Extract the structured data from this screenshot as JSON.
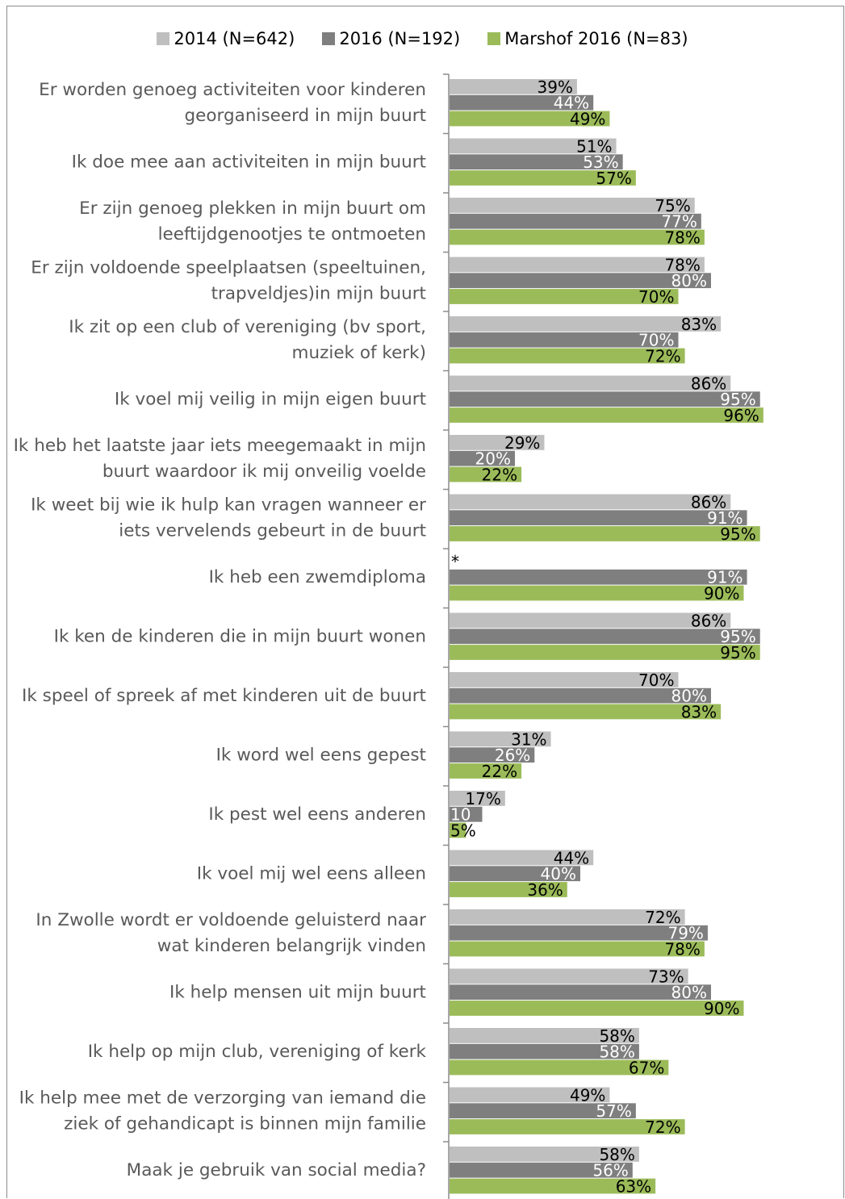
{
  "chart_data": {
    "type": "bar",
    "orientation": "horizontal",
    "xlim": [
      0,
      100
    ],
    "series": [
      {
        "name": "2014 (N=642)",
        "color": "#bfbfbf"
      },
      {
        "name": "2016 (N=192)",
        "color": "#7f7f7f"
      },
      {
        "name": "Marshof 2016 (N=83)",
        "color": "#9bbb59"
      }
    ],
    "rows": [
      {
        "label_lines": [
          "Er worden genoeg activiteiten voor kinderen",
          "georganiseerd in mijn buurt"
        ],
        "values": [
          39,
          44,
          49
        ],
        "labels": [
          "39%",
          "44%",
          "49%"
        ]
      },
      {
        "label_lines": [
          "Ik doe mee aan activiteiten in mijn buurt"
        ],
        "values": [
          51,
          53,
          57
        ],
        "labels": [
          "51%",
          "53%",
          "57%"
        ]
      },
      {
        "label_lines": [
          "Er zijn genoeg plekken in mijn buurt om",
          "leeftijdgenootjes te ontmoeten"
        ],
        "values": [
          75,
          77,
          78
        ],
        "labels": [
          "75%",
          "77%",
          "78%"
        ]
      },
      {
        "label_lines": [
          "Er zijn voldoende speelplaatsen (speeltuinen,",
          "trapveldjes)in mijn buurt"
        ],
        "values": [
          78,
          80,
          70
        ],
        "labels": [
          "78%",
          "80%",
          "70%"
        ]
      },
      {
        "label_lines": [
          "Ik zit op een club of vereniging (bv sport,",
          "muziek of kerk)"
        ],
        "values": [
          83,
          70,
          72
        ],
        "labels": [
          "83%",
          "70%",
          "72%"
        ]
      },
      {
        "label_lines": [
          "Ik voel mij veilig in mijn eigen buurt"
        ],
        "values": [
          86,
          95,
          96
        ],
        "labels": [
          "86%",
          "95%",
          "96%"
        ]
      },
      {
        "label_lines": [
          "Ik heb het laatste jaar iets meegemaakt in mijn",
          "buurt waardoor ik mij onveilig voelde"
        ],
        "values": [
          29,
          20,
          22
        ],
        "labels": [
          "29%",
          "20%",
          "22%"
        ]
      },
      {
        "label_lines": [
          "Ik weet bij wie ik hulp kan vragen wanneer er",
          "iets vervelends gebeurt in de buurt"
        ],
        "values": [
          86,
          91,
          95
        ],
        "labels": [
          "86%",
          "91%",
          "95%"
        ]
      },
      {
        "label_lines": [
          "Ik heb een zwemdiploma"
        ],
        "values": [
          null,
          91,
          90
        ],
        "labels": [
          "*",
          "91%",
          "90%"
        ]
      },
      {
        "label_lines": [
          "Ik ken de kinderen die in mijn buurt wonen"
        ],
        "values": [
          86,
          95,
          95
        ],
        "labels": [
          "86%",
          "95%",
          "95%"
        ]
      },
      {
        "label_lines": [
          "Ik speel of spreek af met kinderen uit de buurt"
        ],
        "values": [
          70,
          80,
          83
        ],
        "labels": [
          "70%",
          "80%",
          "83%"
        ]
      },
      {
        "label_lines": [
          "Ik word wel eens gepest"
        ],
        "values": [
          31,
          26,
          22
        ],
        "labels": [
          "31%",
          "26%",
          "22%"
        ]
      },
      {
        "label_lines": [
          "Ik pest wel eens anderen"
        ],
        "values": [
          17,
          10,
          5
        ],
        "labels": [
          "17%",
          "10",
          "5%"
        ]
      },
      {
        "label_lines": [
          "Ik voel mij wel eens alleen"
        ],
        "values": [
          44,
          40,
          36
        ],
        "labels": [
          "44%",
          "40%",
          "36%"
        ]
      },
      {
        "label_lines": [
          "In Zwolle wordt er voldoende geluisterd naar",
          "wat kinderen belangrijk vinden"
        ],
        "values": [
          72,
          79,
          78
        ],
        "labels": [
          "72%",
          "79%",
          "78%"
        ]
      },
      {
        "label_lines": [
          "Ik help  mensen uit mijn buurt"
        ],
        "values": [
          73,
          80,
          90
        ],
        "labels": [
          "73%",
          "80%",
          "90%"
        ]
      },
      {
        "label_lines": [
          "Ik help op mijn club, vereniging of kerk"
        ],
        "values": [
          58,
          58,
          67
        ],
        "labels": [
          "58%",
          "58%",
          "67%"
        ]
      },
      {
        "label_lines": [
          "Ik help mee met de verzorging van iemand die",
          "ziek of gehandicapt is binnen mijn familie"
        ],
        "values": [
          49,
          57,
          72
        ],
        "labels": [
          "49%",
          "57%",
          "72%"
        ]
      },
      {
        "label_lines": [
          "Maak je gebruik van social media?"
        ],
        "values": [
          58,
          56,
          63
        ],
        "labels": [
          "58%",
          "56%",
          "63%"
        ]
      }
    ]
  }
}
